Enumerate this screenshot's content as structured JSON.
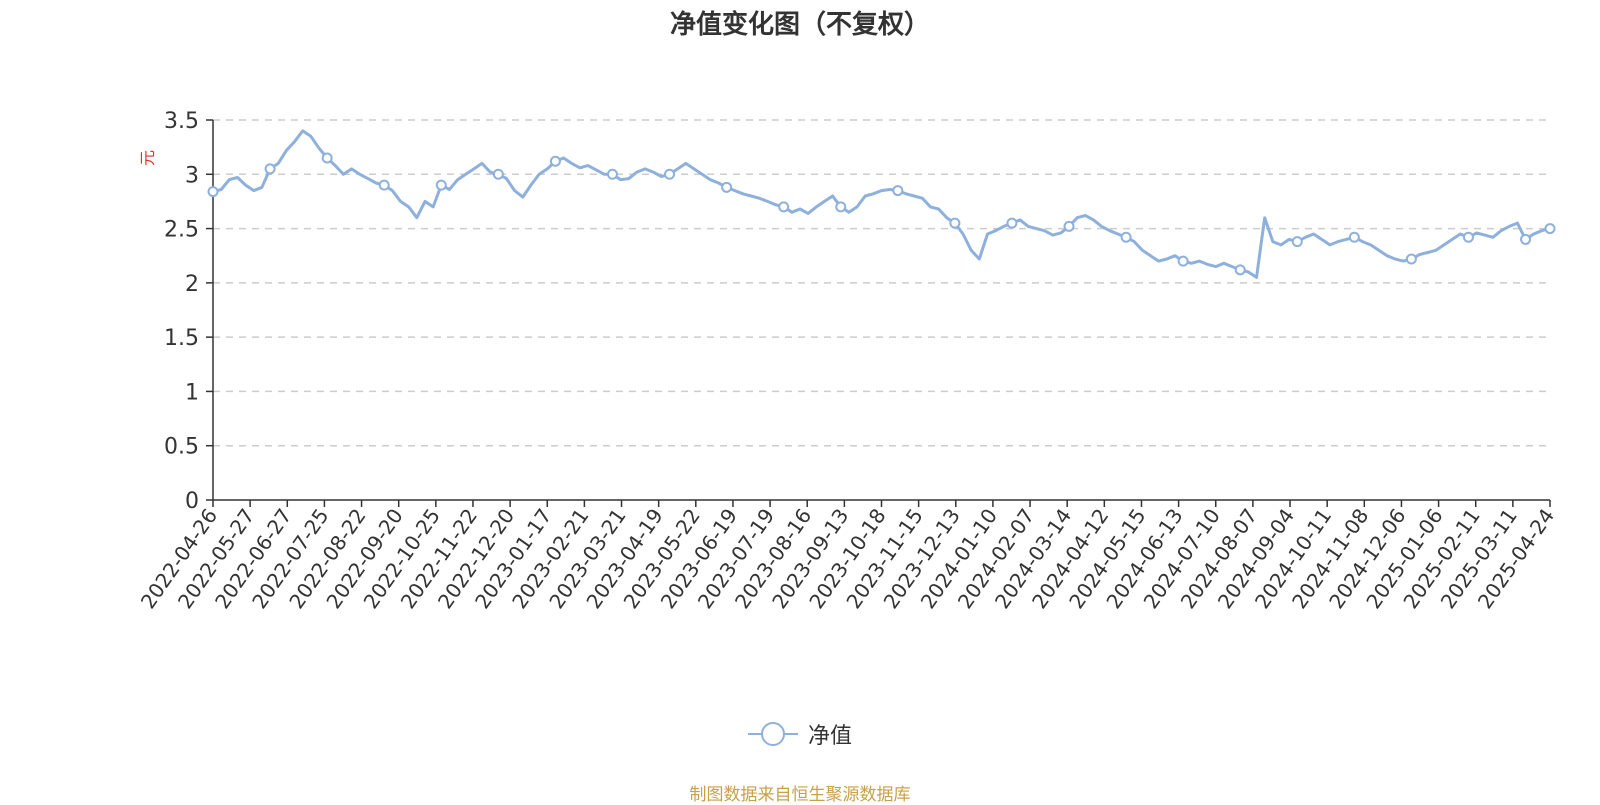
{
  "title": "净值变化图（不复权）",
  "source_note": "制图数据来自恒生聚源数据库",
  "colors": {
    "line": "#8eb0dc",
    "axis": "#333333",
    "grid": "#cccccc",
    "unit": "#e0302a",
    "source": "#c8a048"
  },
  "chart_data": {
    "type": "line",
    "title": "净值变化图（不复权）",
    "ylabel": "元",
    "ylim": [
      0,
      3.5
    ],
    "yticks": [
      0,
      0.5,
      1,
      1.5,
      2,
      2.5,
      3,
      3.5
    ],
    "ytick_labels": [
      "0",
      "0.5",
      "1",
      "1.5",
      "2",
      "2.5",
      "3",
      "3.5"
    ],
    "grid": "horizontal dashed",
    "legend_position": "bottom-center",
    "x_tick_labels": [
      "2022-04-26",
      "2022-05-27",
      "2022-06-27",
      "2022-07-25",
      "2022-08-22",
      "2022-09-20",
      "2022-10-25",
      "2022-11-22",
      "2022-12-20",
      "2023-01-17",
      "2023-02-21",
      "2023-03-21",
      "2023-04-19",
      "2023-05-22",
      "2023-06-19",
      "2023-07-19",
      "2023-08-16",
      "2023-09-13",
      "2023-10-18",
      "2023-11-15",
      "2023-12-13",
      "2024-01-10",
      "2024-02-07",
      "2024-03-14",
      "2024-04-12",
      "2024-05-15",
      "2024-06-13",
      "2024-07-10",
      "2024-08-07",
      "2024-09-04",
      "2024-10-11",
      "2024-11-08",
      "2024-12-06",
      "2025-01-06",
      "2025-02-11",
      "2025-03-11",
      "2025-04-24"
    ],
    "series": [
      {
        "name": "净值",
        "values": [
          2.84,
          2.86,
          2.95,
          2.97,
          2.9,
          2.85,
          2.88,
          3.05,
          3.1,
          3.22,
          3.3,
          3.4,
          3.35,
          3.24,
          3.15,
          3.08,
          3.0,
          3.05,
          3.0,
          2.96,
          2.92,
          2.9,
          2.85,
          2.75,
          2.7,
          2.6,
          2.75,
          2.7,
          2.9,
          2.86,
          2.95,
          3.0,
          3.05,
          3.1,
          3.02,
          3.0,
          2.96,
          2.85,
          2.79,
          2.9,
          3.0,
          3.05,
          3.12,
          3.15,
          3.1,
          3.06,
          3.08,
          3.04,
          3.0,
          3.0,
          2.95,
          2.96,
          3.02,
          3.05,
          3.02,
          2.98,
          3.0,
          3.05,
          3.1,
          3.05,
          3.0,
          2.95,
          2.92,
          2.88,
          2.85,
          2.82,
          2.8,
          2.78,
          2.75,
          2.72,
          2.7,
          2.65,
          2.68,
          2.64,
          2.7,
          2.75,
          2.8,
          2.7,
          2.65,
          2.7,
          2.8,
          2.82,
          2.85,
          2.86,
          2.85,
          2.82,
          2.8,
          2.78,
          2.7,
          2.68,
          2.6,
          2.55,
          2.45,
          2.3,
          2.22,
          2.45,
          2.48,
          2.52,
          2.55,
          2.58,
          2.52,
          2.5,
          2.48,
          2.44,
          2.46,
          2.52,
          2.6,
          2.62,
          2.58,
          2.52,
          2.48,
          2.45,
          2.42,
          2.38,
          2.3,
          2.25,
          2.2,
          2.22,
          2.25,
          2.2,
          2.18,
          2.2,
          2.17,
          2.15,
          2.18,
          2.15,
          2.12,
          2.1,
          2.05,
          2.6,
          2.38,
          2.35,
          2.4,
          2.38,
          2.42,
          2.45,
          2.4,
          2.35,
          2.38,
          2.4,
          2.42,
          2.38,
          2.35,
          2.3,
          2.25,
          2.22,
          2.2,
          2.22,
          2.26,
          2.28,
          2.3,
          2.35,
          2.4,
          2.45,
          2.42,
          2.46,
          2.44,
          2.42,
          2.48,
          2.52,
          2.55,
          2.4,
          2.45,
          2.48,
          2.5
        ]
      }
    ],
    "marker_every": 7
  }
}
